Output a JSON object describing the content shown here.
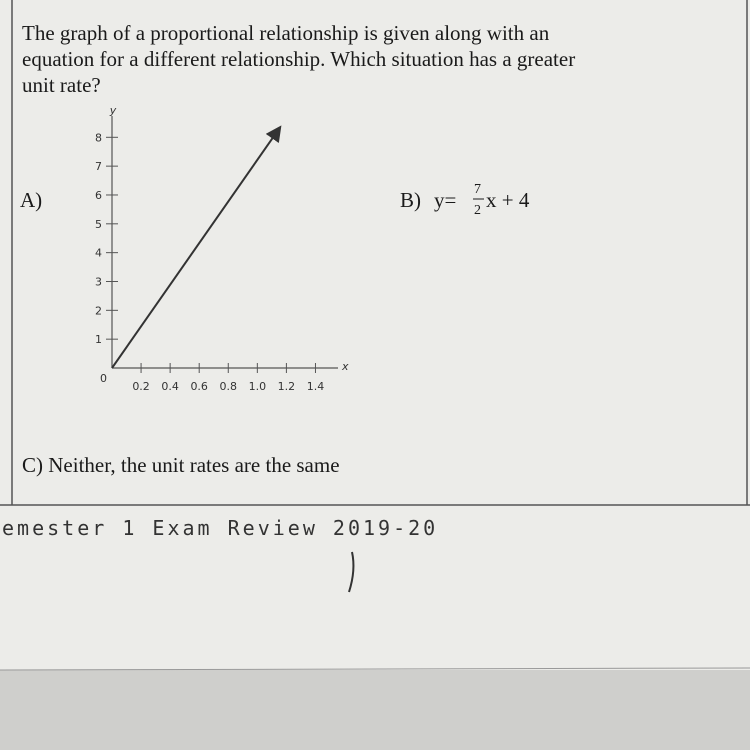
{
  "question_lines": [
    "The graph of a proportional relationship is given along with an",
    "equation for a different relationship. Which situation has a greater",
    "unit rate?"
  ],
  "options": {
    "a_label": "A)",
    "b_label": "B)",
    "b_equation": {
      "lhs": "y=",
      "numerator": "7",
      "denominator": "2",
      "rest": "x + 4"
    },
    "c": "C) Neither, the unit rates are the same"
  },
  "graph": {
    "type": "line",
    "x_label": "x",
    "y_label": "y",
    "origin_label": "0",
    "xlim": [
      0,
      1.5
    ],
    "ylim": [
      0,
      8.6
    ],
    "xticks": [
      0.2,
      0.4,
      0.6,
      0.8,
      {
        "value": 1,
        "label": "1.0"
      },
      1.2,
      1.4
    ],
    "yticks": [
      1,
      2,
      3,
      4,
      5,
      6,
      7,
      8
    ],
    "x": [
      0,
      1.15
    ],
    "y": [
      0,
      8.3
    ],
    "color": "#333333"
  },
  "footer": "emester 1 Exam Review 2019-20"
}
